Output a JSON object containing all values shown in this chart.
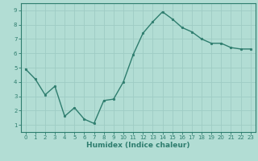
{
  "x": [
    0,
    1,
    2,
    3,
    4,
    5,
    6,
    7,
    8,
    9,
    10,
    11,
    12,
    13,
    14,
    15,
    16,
    17,
    18,
    19,
    20,
    21,
    22,
    23
  ],
  "y": [
    4.9,
    4.2,
    3.1,
    3.7,
    1.6,
    2.2,
    1.4,
    1.1,
    2.7,
    2.8,
    4.0,
    5.9,
    7.4,
    8.2,
    8.9,
    8.4,
    7.8,
    7.5,
    7.0,
    6.7,
    6.7,
    6.4,
    6.3,
    6.3
  ],
  "line_color": "#2e7d6e",
  "marker": "o",
  "marker_size": 1.8,
  "line_width": 1.0,
  "bg_color": "#b2ddd4",
  "grid_color": "#9eccc4",
  "xlabel": "Humidex (Indice chaleur)",
  "xlim": [
    -0.5,
    23.5
  ],
  "ylim": [
    0.5,
    9.5
  ],
  "yticks": [
    1,
    2,
    3,
    4,
    5,
    6,
    7,
    8,
    9
  ],
  "xticks": [
    0,
    1,
    2,
    3,
    4,
    5,
    6,
    7,
    8,
    9,
    10,
    11,
    12,
    13,
    14,
    15,
    16,
    17,
    18,
    19,
    20,
    21,
    22,
    23
  ],
  "tick_fontsize": 5.0,
  "xlabel_fontsize": 6.5,
  "tick_color": "#2e7d6e",
  "spine_color": "#2e7d6e"
}
